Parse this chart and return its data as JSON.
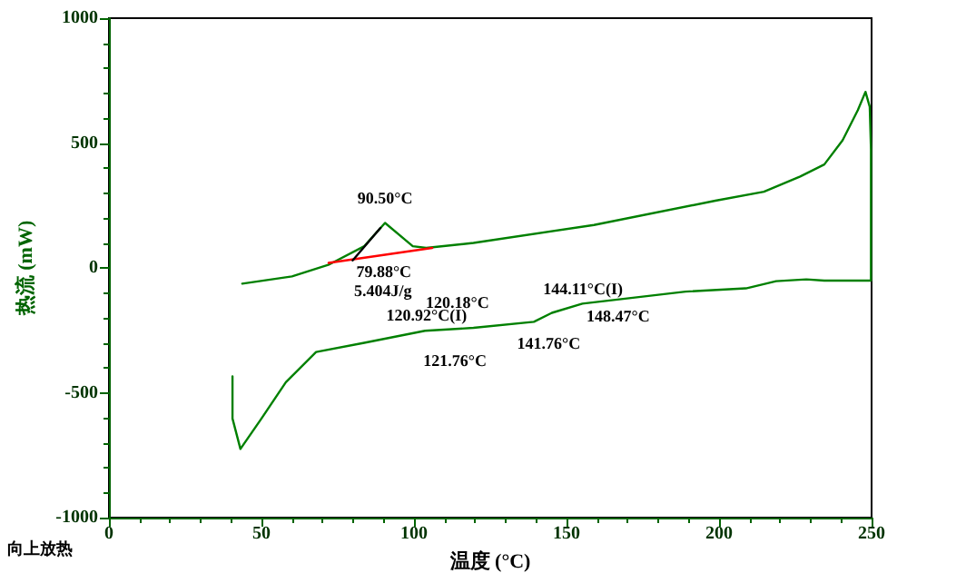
{
  "chart_data": {
    "type": "line",
    "xlabel": "温度 (°C)",
    "ylabel": "热流 (mW)",
    "xlim": [
      0,
      250
    ],
    "ylim": [
      -1000,
      1000
    ],
    "xticks": [
      0,
      50,
      100,
      150,
      200,
      250
    ],
    "yticks": [
      -1000,
      -500,
      0,
      500,
      1000
    ],
    "grid": false,
    "marker": "none",
    "line_style": "solid",
    "series": [
      {
        "color": "#008000",
        "x": [
          43.7,
          60,
          71.9,
          83.7,
          90.5,
          99.6,
          104,
          119.5,
          159,
          198.8,
          214.7,
          226.6,
          234.5,
          240.5,
          245.5,
          248,
          249.4,
          249.8,
          249.8,
          249.4,
          234.5,
          228.6,
          218.7,
          208.8,
          189,
          155.2,
          145.2,
          139.3,
          119.5,
          103.6,
          83.7,
          67.9,
          58,
          50,
          43.1,
          40.5,
          40.5
        ],
        "values": [
          -63,
          -34,
          12,
          87,
          180,
          87,
          80,
          100,
          172,
          269,
          305,
          366,
          414,
          511,
          632,
          705,
          645,
          475,
          -51,
          -51,
          -51,
          -46,
          -53,
          -82,
          -95,
          -143,
          -180,
          -216,
          -240,
          -252,
          -300,
          -337,
          -458,
          -603,
          -725,
          -603,
          -434
        ]
      },
      {
        "color": "#ff0000",
        "x": [
          72,
          106
        ],
        "values": [
          20,
          80
        ]
      },
      {
        "color": "#000000",
        "x": [
          79.9,
          89
        ],
        "values": [
          30,
          160
        ]
      }
    ],
    "annotations": [
      {
        "text": "90.50°C",
        "x": 90.5,
        "y": 180
      },
      {
        "text": "79.88°C",
        "x": 79.88,
        "y": 30
      },
      "5.404J/g",
      {
        "text": "120.18°C",
        "x": 120.18,
        "y": -240
      },
      {
        "text": "120.92°C(I)",
        "x": 120.92,
        "y": -240
      },
      {
        "text": "121.76°C",
        "x": 121.76,
        "y": -240
      },
      {
        "text": "141.76°C",
        "x": 141.76,
        "y": -216
      },
      {
        "text": "144.11°C(I)",
        "x": 144.11,
        "y": -200
      },
      {
        "text": "148.47°C",
        "x": 148.47,
        "y": -170
      },
      "向上放热"
    ]
  }
}
